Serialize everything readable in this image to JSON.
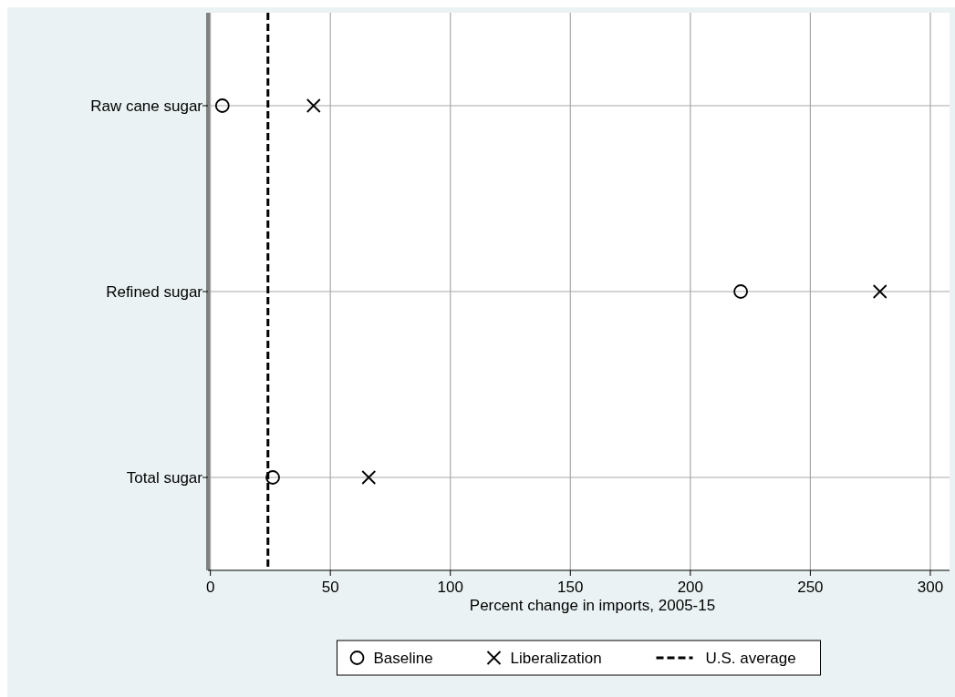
{
  "chart_data": {
    "type": "scatter",
    "orientation": "horizontal",
    "xlabel": "Percent change in imports, 2005-15",
    "categories": [
      "Raw cane sugar",
      "Refined sugar",
      "Total sugar"
    ],
    "series": [
      {
        "name": "Baseline",
        "color": "#000000",
        "marker": "circle",
        "values": [
          5,
          221,
          26
        ]
      },
      {
        "name": "Liberalization",
        "color": "#000000",
        "marker": "cross",
        "values": [
          43,
          279,
          66
        ]
      }
    ],
    "xlim": [
      -1,
      308
    ],
    "xticks": [
      0,
      50,
      100,
      150,
      200,
      250,
      300
    ],
    "grid": true,
    "legend": "bottom",
    "ref_lines": [
      {
        "axis": "x",
        "value": 24,
        "label": "U.S. average",
        "line_style": "dashed",
        "color": "#000000"
      }
    ]
  }
}
